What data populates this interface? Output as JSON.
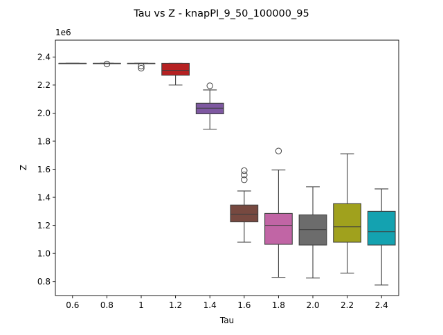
{
  "chart_data": {
    "type": "box",
    "title": "Tau vs Z - knapPI_9_50_100000_95",
    "xlabel": "Tau",
    "ylabel": "Z",
    "y_offset_label": "1e6",
    "ylim": [
      700000,
      2520000
    ],
    "yticks": [
      800000,
      1000000,
      1200000,
      1400000,
      1600000,
      1800000,
      2000000,
      2200000,
      2400000
    ],
    "ytick_labels": [
      "0.8",
      "1.0",
      "1.2",
      "1.4",
      "1.6",
      "1.8",
      "2.0",
      "2.2",
      "2.4"
    ],
    "categories": [
      "0.6",
      "0.8",
      "1",
      "1.2",
      "1.4",
      "1.6",
      "1.8",
      "2.0",
      "2.2",
      "2.4"
    ],
    "grid": false,
    "colors": [
      "#1f77b4",
      "#ff7f0e",
      "#2ca02c",
      "#d62728",
      "#9467bd",
      "#8c564b",
      "#e377c2",
      "#7f7f7f",
      "#bcbd22",
      "#17becf"
    ],
    "boxes": [
      {
        "category": "0.6",
        "whisker_low": 2355000,
        "q1": 2355000,
        "median": 2355000,
        "q3": 2355000,
        "whisker_high": 2355000,
        "outliers": []
      },
      {
        "category": "0.8",
        "whisker_low": 2355000,
        "q1": 2355000,
        "median": 2355000,
        "q3": 2355000,
        "whisker_high": 2355000,
        "outliers": [
          2350000
        ]
      },
      {
        "category": "1",
        "whisker_low": 2355000,
        "q1": 2355000,
        "median": 2355000,
        "q3": 2355000,
        "whisker_high": 2355000,
        "outliers": [
          2335000,
          2320000
        ]
      },
      {
        "category": "1.2",
        "whisker_low": 2200000,
        "q1": 2270000,
        "median": 2305000,
        "q3": 2355000,
        "whisker_high": 2355000,
        "outliers": []
      },
      {
        "category": "1.4",
        "whisker_low": 1885000,
        "q1": 1995000,
        "median": 2035000,
        "q3": 2070000,
        "whisker_high": 2165000,
        "outliers": [
          2195000
        ]
      },
      {
        "category": "1.6",
        "whisker_low": 1080000,
        "q1": 1225000,
        "median": 1280000,
        "q3": 1345000,
        "whisker_high": 1445000,
        "outliers": [
          1525000,
          1560000,
          1590000
        ]
      },
      {
        "category": "1.8",
        "whisker_low": 830000,
        "q1": 1065000,
        "median": 1200000,
        "q3": 1285000,
        "whisker_high": 1595000,
        "outliers": [
          1730000
        ]
      },
      {
        "category": "2.0",
        "whisker_low": 825000,
        "q1": 1060000,
        "median": 1170000,
        "q3": 1275000,
        "whisker_high": 1475000,
        "outliers": []
      },
      {
        "category": "2.2",
        "whisker_low": 860000,
        "q1": 1080000,
        "median": 1190000,
        "q3": 1355000,
        "whisker_high": 1710000,
        "outliers": []
      },
      {
        "category": "2.4",
        "whisker_low": 775000,
        "q1": 1060000,
        "median": 1155000,
        "q3": 1300000,
        "whisker_high": 1460000,
        "outliers": []
      }
    ]
  }
}
